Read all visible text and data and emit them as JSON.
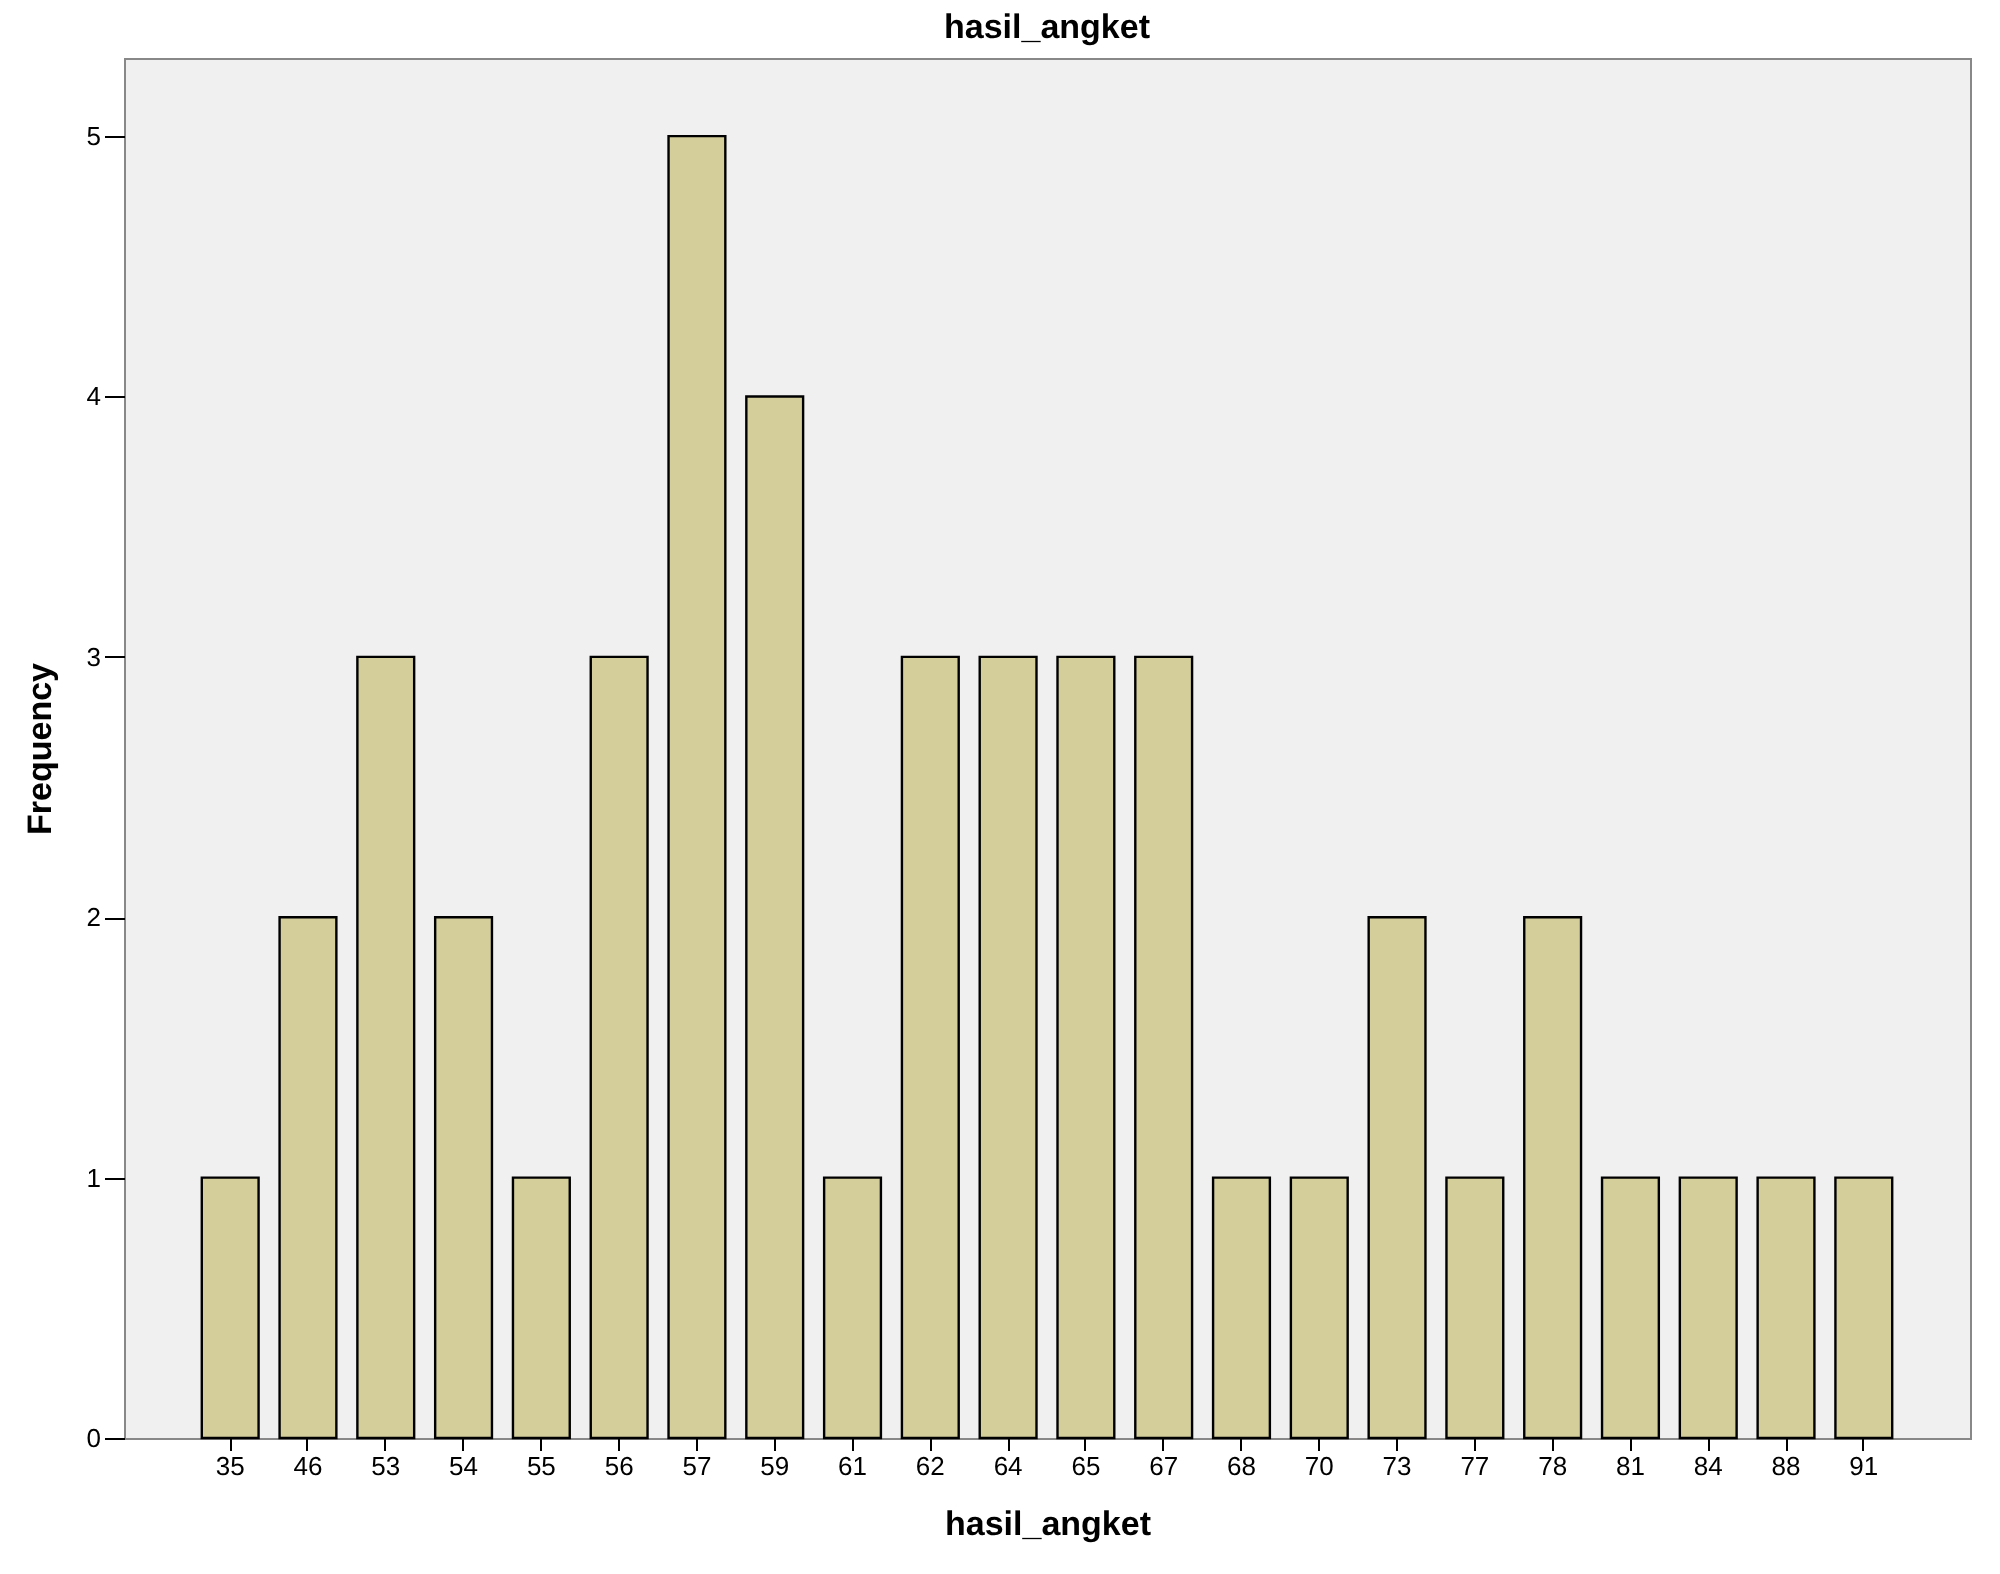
{
  "chart_data": {
    "type": "bar",
    "title": "hasil_angket",
    "xlabel": "hasil_angket",
    "ylabel": "Frequency",
    "categories": [
      "35",
      "46",
      "53",
      "54",
      "55",
      "56",
      "57",
      "59",
      "61",
      "62",
      "64",
      "65",
      "67",
      "68",
      "70",
      "73",
      "77",
      "78",
      "81",
      "84",
      "88",
      "91"
    ],
    "values": [
      1,
      2,
      3,
      2,
      1,
      3,
      5,
      4,
      1,
      3,
      3,
      3,
      3,
      1,
      1,
      2,
      1,
      2,
      1,
      1,
      1,
      1
    ],
    "color": "#d3ce9a",
    "ylim": [
      0,
      5.3
    ],
    "yticks": [
      0,
      1,
      2,
      3,
      4,
      5
    ],
    "grid": false
  }
}
